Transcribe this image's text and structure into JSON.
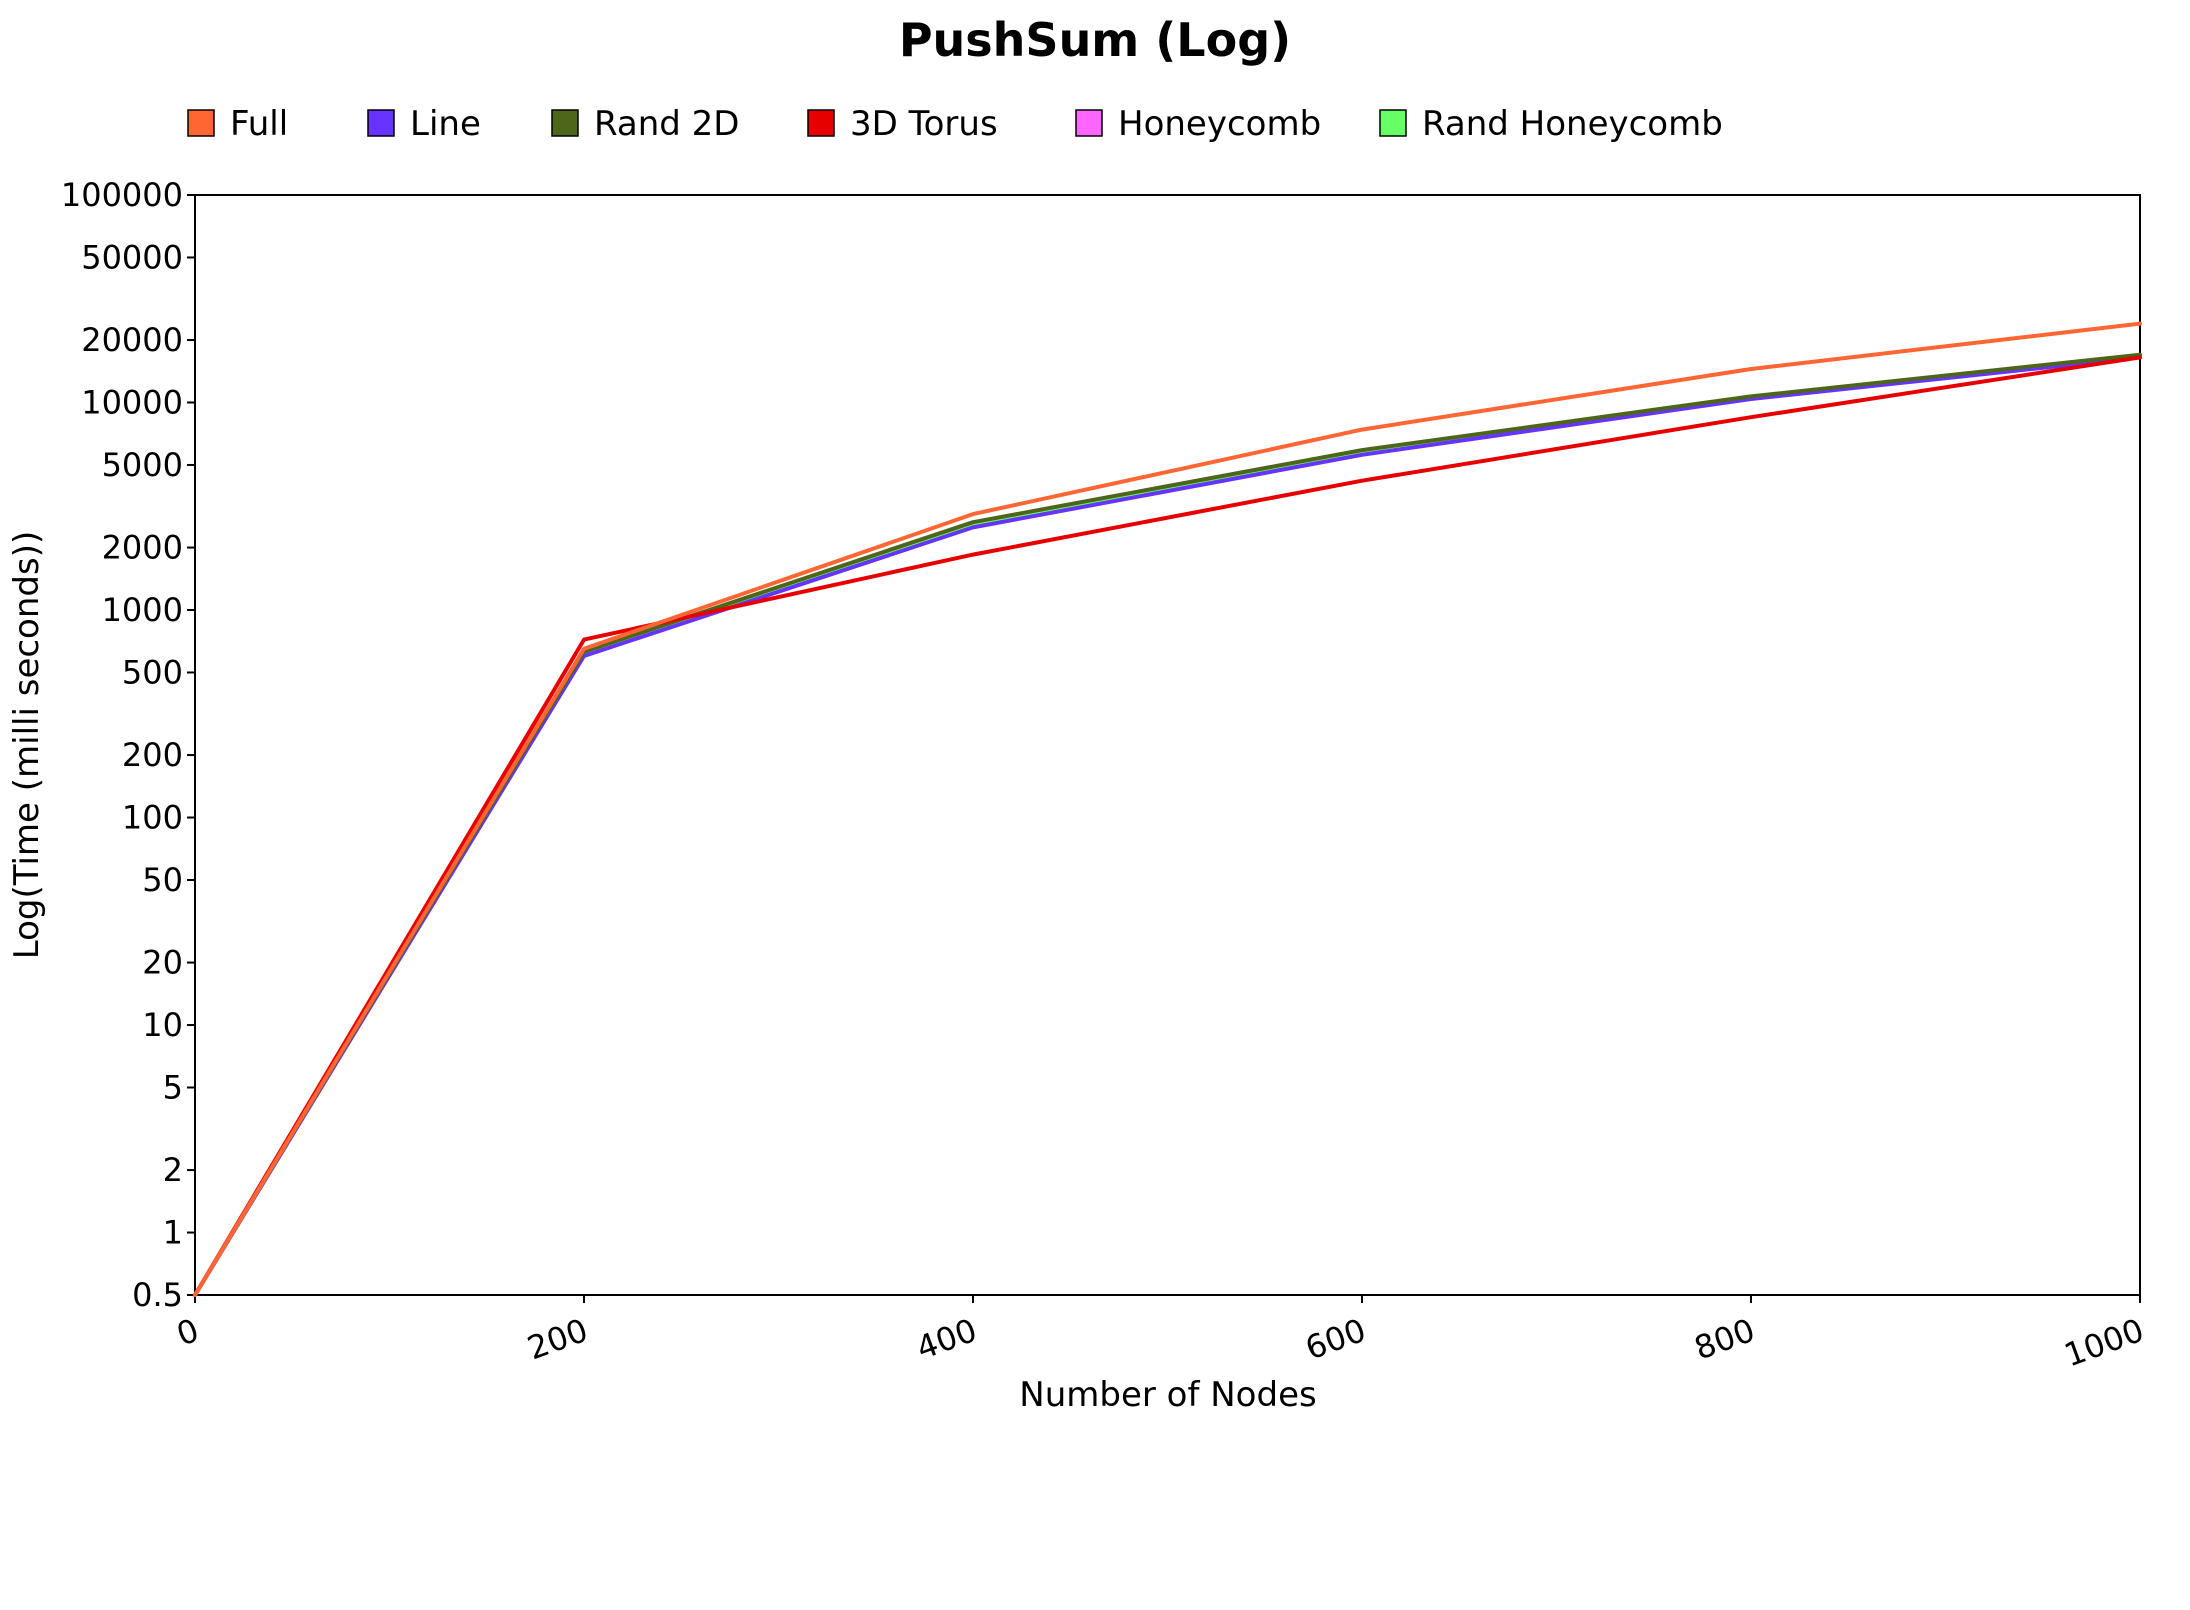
{
  "chart_data": {
    "type": "line",
    "title": "PushSum (Log)",
    "xlabel": "Number of Nodes",
    "ylabel": "Log(Time (milli seconds))",
    "y_scale": "log",
    "xlim": [
      0,
      1000
    ],
    "ylim": [
      0.5,
      100000
    ],
    "grid": false,
    "legend_position": "top",
    "x_ticks": [
      "0",
      "200",
      "400",
      "600",
      "800",
      "1000"
    ],
    "y_ticks": [
      "0.5",
      "1",
      "2",
      "5",
      "10",
      "20",
      "50",
      "100",
      "200",
      "500",
      "1000",
      "2000",
      "5000",
      "10000",
      "20000",
      "50000",
      "100000"
    ],
    "x": [
      0,
      200,
      400,
      600,
      800,
      1000
    ],
    "series": [
      {
        "name": "Full",
        "color": "#ff6633",
        "values": [
          0.5,
          650,
          2900,
          7400,
          14500,
          24000
        ]
      },
      {
        "name": "Line",
        "color": "#6633ff",
        "values": [
          0.5,
          600,
          2500,
          5600,
          10400,
          16500
        ]
      },
      {
        "name": "Rand 2D",
        "color": "#4d6619",
        "values": [
          0.5,
          630,
          2650,
          5900,
          10700,
          17000
        ]
      },
      {
        "name": "3D Torus",
        "color": "#e60000",
        "values": [
          0.5,
          720,
          1850,
          4200,
          8500,
          16500
        ]
      },
      {
        "name": "Honeycomb",
        "color": "#ff66ff",
        "values": [
          0.5,
          610,
          2550,
          5700,
          10500,
          16700
        ]
      },
      {
        "name": "Rand Honeycomb",
        "color": "#66ff66",
        "values": [
          0.5,
          620,
          2600,
          5800,
          10600,
          16800
        ]
      }
    ]
  }
}
